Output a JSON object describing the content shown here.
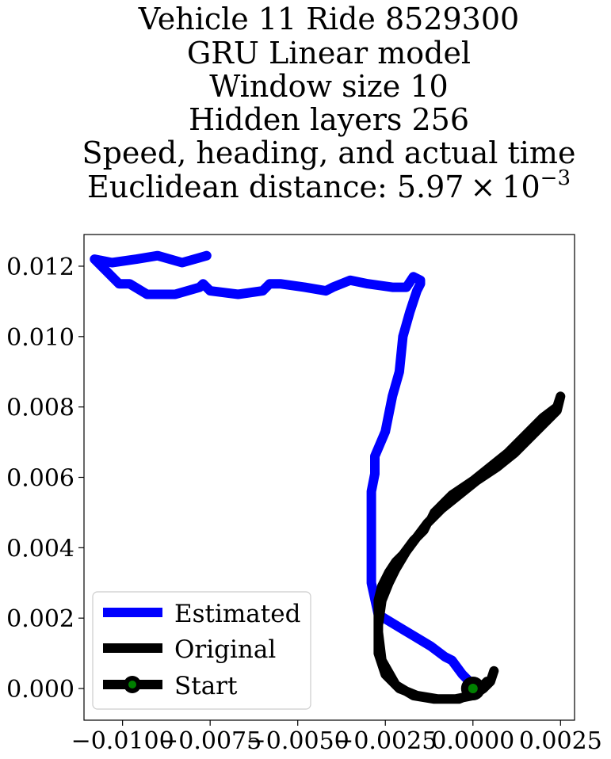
{
  "chart_data": {
    "type": "line",
    "title_lines": [
      "Vehicle 11 Ride 8529300",
      "GRU Linear model",
      "Window size 10",
      "Hidden layers 256",
      "Speed, heading, and actual time"
    ],
    "title_distance_prefix": "Euclidean distance: 5.97",
    "title_distance_times": "×",
    "title_distance_base": "10",
    "title_distance_exp": "−3",
    "xlabel": "",
    "ylabel": "",
    "xlim": [
      -0.0111,
      0.0029
    ],
    "ylim": [
      -0.0009,
      0.0129
    ],
    "grid": false,
    "legend_position": "lower-left",
    "x_ticks": [
      -0.01,
      -0.0075,
      -0.005,
      -0.0025,
      0.0,
      0.0025
    ],
    "x_tick_labels": [
      "−0.0100",
      "−0.0075",
      "−0.0050",
      "−0.0025",
      "0.0000",
      "0.0025"
    ],
    "y_ticks": [
      0.0,
      0.002,
      0.004,
      0.006,
      0.008,
      0.01,
      0.012
    ],
    "y_tick_labels": [
      "0.000",
      "0.002",
      "0.004",
      "0.006",
      "0.008",
      "0.010",
      "0.012"
    ],
    "legend": [
      "Estimated",
      "Original",
      "Start"
    ],
    "series": [
      {
        "name": "Estimated",
        "color": "#0000ff",
        "x": [
          0.0,
          -0.0003,
          -0.0006,
          -0.0008,
          -0.0012,
          -0.0017,
          -0.0022,
          -0.0027,
          -0.0029,
          -0.0029,
          -0.0029,
          -0.0028,
          -0.0028,
          -0.0025,
          -0.0023,
          -0.0021,
          -0.002,
          -0.0018,
          -0.0016,
          -0.0015,
          -0.0015,
          -0.0017,
          -0.0019,
          -0.0023,
          -0.003,
          -0.0035,
          -0.004,
          -0.0042,
          -0.0048,
          -0.0055,
          -0.0058,
          -0.006,
          -0.0067,
          -0.0075,
          -0.0077,
          -0.0078,
          -0.0085,
          -0.0093,
          -0.0098,
          -0.0101,
          -0.0108,
          -0.0103,
          -0.0096,
          -0.009,
          -0.0083,
          -0.0076
        ],
        "y": [
          0.0001,
          0.0004,
          0.0008,
          0.0009,
          0.0012,
          0.0015,
          0.0018,
          0.0021,
          0.003,
          0.0042,
          0.0056,
          0.0061,
          0.0066,
          0.0073,
          0.0083,
          0.009,
          0.01,
          0.0107,
          0.0113,
          0.0115,
          0.0116,
          0.0117,
          0.0114,
          0.0114,
          0.0115,
          0.0116,
          0.0114,
          0.0113,
          0.0114,
          0.0115,
          0.0115,
          0.0113,
          0.0112,
          0.0113,
          0.0115,
          0.0114,
          0.0112,
          0.0112,
          0.0115,
          0.0115,
          0.0122,
          0.0121,
          0.0122,
          0.0123,
          0.0121,
          0.0123
        ]
      },
      {
        "name": "Original",
        "color": "#000000",
        "x": [
          0.0006,
          0.0005,
          0.0003,
          0.0,
          -0.0005,
          -0.0011,
          -0.0017,
          -0.0022,
          -0.0026,
          -0.0027,
          -0.0027,
          -0.0026,
          -0.0024,
          -0.0022,
          -0.002,
          -0.0017,
          -0.0014,
          -0.0013,
          -0.0012,
          -0.0011,
          -0.001,
          -0.0008,
          -0.0006,
          -0.0003,
          0.0,
          0.0005,
          0.001,
          0.0014,
          0.0017,
          0.002,
          0.0024,
          0.0025,
          0.0024,
          0.002,
          0.0016,
          0.0012,
          0.0007,
          0.0001,
          -0.0004,
          -0.0009,
          -0.0013,
          -0.0016,
          -0.0019,
          -0.0022,
          -0.0024,
          -0.0026,
          -0.0027,
          -0.0027,
          -0.0025,
          -0.0021,
          -0.0016,
          -0.001,
          -0.0004,
          0.0001,
          0.0004
        ],
        "y": [
          0.0005,
          0.0002,
          0.0,
          -0.0002,
          -0.0003,
          -0.0003,
          -0.0002,
          0.0001,
          0.0008,
          0.0016,
          0.0025,
          0.0029,
          0.0033,
          0.0036,
          0.0038,
          0.0042,
          0.0045,
          0.0047,
          0.0048,
          0.005,
          0.0051,
          0.0053,
          0.0055,
          0.0057,
          0.0059,
          0.0063,
          0.0067,
          0.0071,
          0.0074,
          0.0077,
          0.008,
          0.0083,
          0.0079,
          0.0075,
          0.0071,
          0.0067,
          0.0063,
          0.0059,
          0.0055,
          0.0051,
          0.0047,
          0.0043,
          0.0039,
          0.0034,
          0.003,
          0.0025,
          0.0018,
          0.001,
          0.0004,
          0.0,
          -0.0002,
          -0.0003,
          -0.0003,
          -0.0001,
          0.0002
        ]
      }
    ],
    "start": {
      "name": "Start",
      "x": 0.0,
      "y": 0.0,
      "color": "#008000",
      "ring_color": "#000000"
    }
  }
}
